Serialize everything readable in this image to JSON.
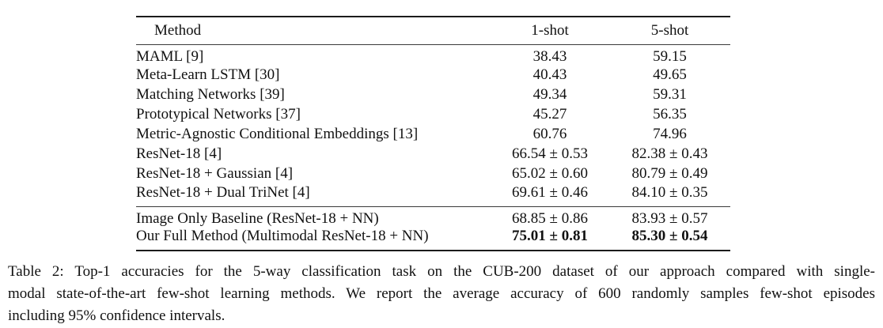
{
  "colors": {
    "background": "#ffffff",
    "text": "#111111",
    "rule_heavy": "#1c1c1c",
    "rule_light": "#3a3a3a"
  },
  "table": {
    "columns": [
      "Method",
      "1-shot",
      "5-shot"
    ],
    "group1": [
      {
        "method": "MAML [9]",
        "one_shot": "38.43",
        "five_shot": "59.15",
        "bold": false
      },
      {
        "method": "Meta-Learn LSTM [30]",
        "one_shot": "40.43",
        "five_shot": "49.65",
        "bold": false
      },
      {
        "method": "Matching Networks [39]",
        "one_shot": "49.34",
        "five_shot": "59.31",
        "bold": false
      },
      {
        "method": "Prototypical Networks [37]",
        "one_shot": "45.27",
        "five_shot": "56.35",
        "bold": false
      },
      {
        "method": "Metric-Agnostic Conditional Embeddings [13]",
        "one_shot": "60.76",
        "five_shot": "74.96",
        "bold": false
      },
      {
        "method": "ResNet-18 [4]",
        "one_shot": "66.54 ± 0.53",
        "five_shot": "82.38 ± 0.43",
        "bold": false
      },
      {
        "method": "ResNet-18 + Gaussian [4]",
        "one_shot": "65.02 ± 0.60",
        "five_shot": "80.79 ± 0.49",
        "bold": false
      },
      {
        "method": "ResNet-18 + Dual TriNet [4]",
        "one_shot": "69.61 ± 0.46",
        "five_shot": "84.10 ± 0.35",
        "bold": false
      }
    ],
    "group2": [
      {
        "method": "Image Only Baseline (ResNet-18 + NN)",
        "one_shot": "68.85 ± 0.86",
        "five_shot": "83.93 ± 0.57",
        "bold": false
      },
      {
        "method": "Our Full Method (Multimodal ResNet-18 + NN)",
        "one_shot": "75.01 ± 0.81",
        "five_shot": "85.30 ± 0.54",
        "bold": true
      }
    ]
  },
  "caption": {
    "full_text": "Table 2: Top-1 accuracies for the 5-way classification task on the CUB-200 dataset of our approach compared with single-modal state-of-the-art few-shot learning methods. We report the average accuracy of 600 randomly samples few-shot episodes including 95% confidence intervals.",
    "lines": [
      "Table 2: Top-1 accuracies for the 5-way classification task on the CUB-200 dataset of our approach compared with single-",
      "modal state-of-the-art few-shot learning methods. We report the average accuracy of 600 randomly samples few-shot episodes",
      "including 95% confidence intervals."
    ]
  }
}
